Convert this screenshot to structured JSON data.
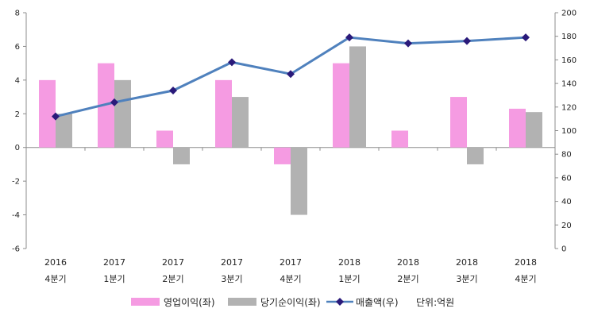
{
  "chart_data": {
    "type": "bar+line",
    "categories": [
      [
        "2016",
        "4분기"
      ],
      [
        "2017",
        "1분기"
      ],
      [
        "2017",
        "2분기"
      ],
      [
        "2017",
        "3분기"
      ],
      [
        "2017",
        "4분기"
      ],
      [
        "2018",
        "1분기"
      ],
      [
        "2018",
        "2분기"
      ],
      [
        "2018",
        "3분기"
      ],
      [
        "2018",
        "4분기"
      ]
    ],
    "left_axis": {
      "ylim": [
        -6,
        8
      ],
      "ticks": [
        -6,
        -4,
        -2,
        0,
        2,
        4,
        6,
        8
      ]
    },
    "right_axis": {
      "ylim": [
        0,
        200
      ],
      "ticks": [
        0,
        20,
        40,
        60,
        80,
        100,
        120,
        140,
        160,
        180,
        200
      ]
    },
    "series": [
      {
        "name": "영업이익(좌)",
        "type": "bar",
        "axis": "left",
        "color": "#f59be2",
        "values": [
          4,
          5,
          1,
          4,
          -1,
          5,
          1,
          3,
          2.3
        ]
      },
      {
        "name": "당기순이익(좌)",
        "type": "bar",
        "axis": "left",
        "color": "#b2b2b2",
        "values": [
          2,
          4,
          -1,
          3,
          -4,
          6,
          0,
          -1,
          2.1
        ]
      },
      {
        "name": "매출액(우)",
        "type": "line",
        "axis": "right",
        "color": "#4f81bd",
        "marker_color": "#2a1a7a",
        "values": [
          112,
          124,
          134,
          158,
          148,
          179,
          174,
          176,
          179
        ]
      }
    ],
    "unit_label": "단위:억원",
    "legend_position": "bottom",
    "grid": false
  }
}
